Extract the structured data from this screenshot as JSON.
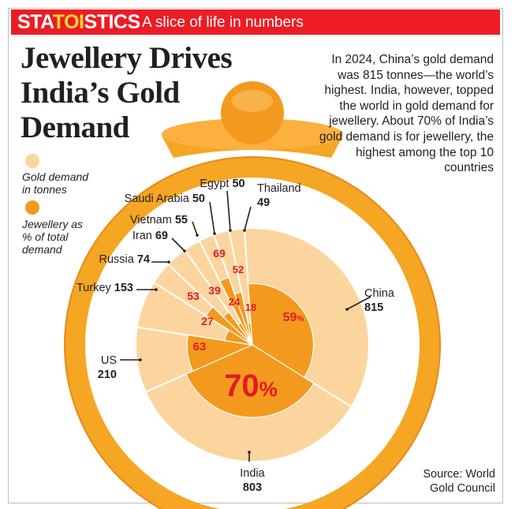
{
  "masthead": {
    "brand_pre": "STA",
    "brand_hl": "TOI",
    "brand_post": "STICS",
    "tagline": "A slice of life in numbers"
  },
  "headline": {
    "line1": "Jewellery Drives",
    "line2": "India’s Gold",
    "line3": "Demand"
  },
  "intro_text": "In 2024, China’s gold demand was 815 tonnes—the world’s highest. India, however, topped the world in gold demand for jewellery. About 70% of India’s gold demand is for jewellery, the highest among the top 10 countries",
  "legend": {
    "demand_line1": "Gold demand",
    "demand_line2": "in tonnes",
    "jewellery_line1": "Jewellery as",
    "jewellery_line2": "% of total",
    "jewellery_line3": "demand"
  },
  "source": {
    "line1": "Source: World",
    "line2": "Gold Council"
  },
  "colors": {
    "demand": "#fcd49e",
    "jewellery": "#f39a1e",
    "pct_text": "#e31b23",
    "ring": "#f5a623",
    "ring_dark": "#e8891a",
    "masthead": "#ec1c24"
  },
  "chart_data": {
    "type": "pie",
    "title": "Jewellery Drives India’s Gold Demand",
    "series": [
      {
        "name": "Gold demand in tonnes",
        "values": [
          815,
          803,
          210,
          153,
          74,
          69,
          55,
          50,
          50,
          49
        ]
      },
      {
        "name": "Jewellery as % of total demand",
        "values": [
          59,
          70,
          63,
          27,
          53,
          39,
          24,
          69,
          52,
          18
        ]
      }
    ],
    "categories": [
      "China",
      "India",
      "US",
      "Turkey",
      "Russia",
      "Iran",
      "Vietnam",
      "Saudi Arabia",
      "Egypt",
      "Thailand"
    ],
    "pct_suffix": "%",
    "legend": "left"
  }
}
